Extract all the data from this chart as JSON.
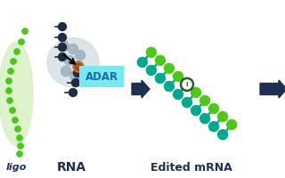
{
  "background_color": "#ffffff",
  "arrow_color": "#1e3050",
  "adar_box_color": "#7ae8f0",
  "adar_text": "ADAR",
  "adar_text_color": "#1a6ab0",
  "label_rna": "RNA",
  "label_oligo": "ligo",
  "label_edited": "Edited mRNA",
  "label_color": "#1e3050",
  "dark_dot_color": "#1e2d42",
  "gray_dot_color": "#8a9aaa",
  "green_dot_color": "#4dc81a",
  "teal_dot_color": "#00a890",
  "light_green_bg": "#d4f0c0",
  "gray_blob_color": "#ccd8e0",
  "orange_dot_color": "#c87830",
  "inosine_ring_color": "#2a5a2a",
  "connector_color": "#00a890"
}
